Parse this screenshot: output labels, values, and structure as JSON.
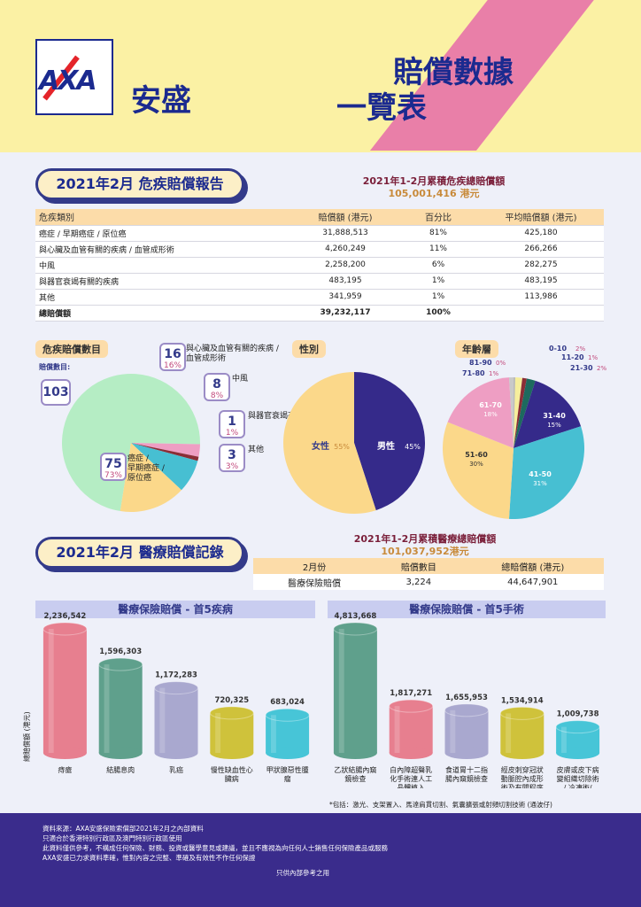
{
  "header": {
    "brand": "安盛",
    "logo": "AXA",
    "title_line1": "賠償數據",
    "title_line2": "一覽表"
  },
  "critical": {
    "section_title": "2021年2月 危疾賠償報告",
    "total_label": "2021年1-2月累積危疾總賠償額",
    "total_value": "105,001,416 港元",
    "columns": [
      "危疾類別",
      "賠償額 (港元)",
      "百分比",
      "平均賠償額 (港元)"
    ],
    "rows": [
      [
        "癌症 / 早期癌症 / 原位癌",
        "31,888,513",
        "81%",
        "425,180"
      ],
      [
        "與心臟及血管有關的疾病 / 血管成形術",
        "4,260,249",
        "11%",
        "266,266"
      ],
      [
        "中風",
        "2,258,200",
        "6%",
        "282,275"
      ],
      [
        "與器官衰竭有關的疾病",
        "483,195",
        "1%",
        "483,195"
      ],
      [
        "其他",
        "341,959",
        "1%",
        "113,986"
      ]
    ],
    "total_row": [
      "總賠償額",
      "39,232,117",
      "100%",
      ""
    ]
  },
  "pies": {
    "count_label": "危疾賠償數目",
    "count_sub": "賠償數目:",
    "count_total": "103",
    "gender_label": "性別",
    "age_label": "年齡層"
  },
  "medical": {
    "section_title": "2021年2月 醫療賠償記錄",
    "total_label": "2021年1-2月累積醫療總賠償額",
    "total_value": "101,037,952港元",
    "columns": [
      "2月份",
      "賠償數目",
      "總賠償額 (港元)"
    ],
    "row": [
      "醫療保險賠償",
      "3,224",
      "44,647,901"
    ],
    "diseases_title": "醫療保險賠償 - 首5疾病",
    "surgery_title": "醫療保險賠償 - 首5手術",
    "ylabel": "總賠償額 (港元)",
    "footnote": "*包括：激光、支架置入、馬達肩貫切割、氣囊擴張或射頻切割技術 (通波仔)"
  },
  "footer": {
    "lines": [
      "資料來源：AXA安盛保險索償部2021年2月之內部資料",
      "只適合於香港特別行政區及澳門特別行政區使用",
      "此資料僅供參考，不構成任何保險、財務、投資或醫學意見或建議，並且不應視為向任何人士銷售任何保險產品或服務",
      "AXA安盛已力求資料準確，惟對內容之完整、準確及有效性不作任何保證"
    ],
    "internal": "只供內部參考之用"
  },
  "chart_data": [
    {
      "type": "pie",
      "title": "危疾賠償數目",
      "total": 103,
      "slices": [
        {
          "name": "癌症 / 早期癌症 / 原位癌",
          "count": 75,
          "pct": 73,
          "color": "#b5edc4"
        },
        {
          "name": "與心臟及血管有關的疾病 / 血管成形術",
          "count": 16,
          "pct": 16,
          "color": "#fbd88a"
        },
        {
          "name": "中風",
          "count": 8,
          "pct": 8,
          "color": "#47bfd2"
        },
        {
          "name": "與器官衰竭有關的疾病",
          "count": 1,
          "pct": 1,
          "color": "#8b2d36"
        },
        {
          "name": "其他",
          "count": 3,
          "pct": 3,
          "color": "#ee9ec3"
        }
      ]
    },
    {
      "type": "pie",
      "title": "性別",
      "slices": [
        {
          "name": "男性",
          "pct": 45,
          "color": "#352a8a"
        },
        {
          "name": "女性",
          "pct": 55,
          "color": "#fbd88a"
        }
      ]
    },
    {
      "type": "pie",
      "title": "年齡層",
      "slices": [
        {
          "name": "0-10",
          "pct": 2,
          "color": "#f6ee9c"
        },
        {
          "name": "11-20",
          "pct": 1,
          "color": "#8b2d36"
        },
        {
          "name": "21-30",
          "pct": 2,
          "color": "#1d6a5e"
        },
        {
          "name": "31-40",
          "pct": 15,
          "color": "#352a8a"
        },
        {
          "name": "41-50",
          "pct": 31,
          "color": "#47bfd2"
        },
        {
          "name": "51-60",
          "pct": 30,
          "color": "#fbd88a"
        },
        {
          "name": "61-70",
          "pct": 18,
          "color": "#ee9ec3"
        },
        {
          "name": "71-80",
          "pct": 1,
          "color": "#c9c9c9"
        },
        {
          "name": "81-90",
          "pct": 0,
          "color": "#bbbbbb"
        }
      ]
    },
    {
      "type": "bar",
      "title": "醫療保險賠償 - 首5疾病",
      "ylabel": "總賠償額 (港元)",
      "categories": [
        "痔瘡",
        "結腸息肉",
        "乳癌",
        "慢性缺血性心臟病",
        "甲狀腺惡性腫瘤"
      ],
      "values": [
        2236542,
        1596303,
        1172283,
        720325,
        683024
      ],
      "labels": [
        "2,236,542",
        "1,596,303",
        "1,172,283",
        "720,325",
        "683,024"
      ],
      "colors": [
        "#e77f8f",
        "#5fa08c",
        "#a9a8cf",
        "#cfc23b",
        "#47c5d7"
      ]
    },
    {
      "type": "bar",
      "title": "醫療保險賠償 - 首5手術",
      "categories": [
        "乙狀結腸內窺鏡檢查",
        "白內障超聲乳化手術連人工晶體植入",
        "食道胃十二指腸內窺鏡檢查",
        "經皮刺穿冠狀動脈腔內成形術及有關程序*",
        "皮膚或皮下病變組織切除術 / 冷凍術 / 電灼術 / 激光治療"
      ],
      "values": [
        4813668,
        1817271,
        1655953,
        1534914,
        1009738
      ],
      "labels": [
        "4,813,668",
        "1,817,271",
        "1,655,953",
        "1,534,914",
        "1,009,738"
      ],
      "colors": [
        "#5fa08c",
        "#e77f8f",
        "#a9a8cf",
        "#cfc23b",
        "#47c5d7"
      ]
    }
  ]
}
